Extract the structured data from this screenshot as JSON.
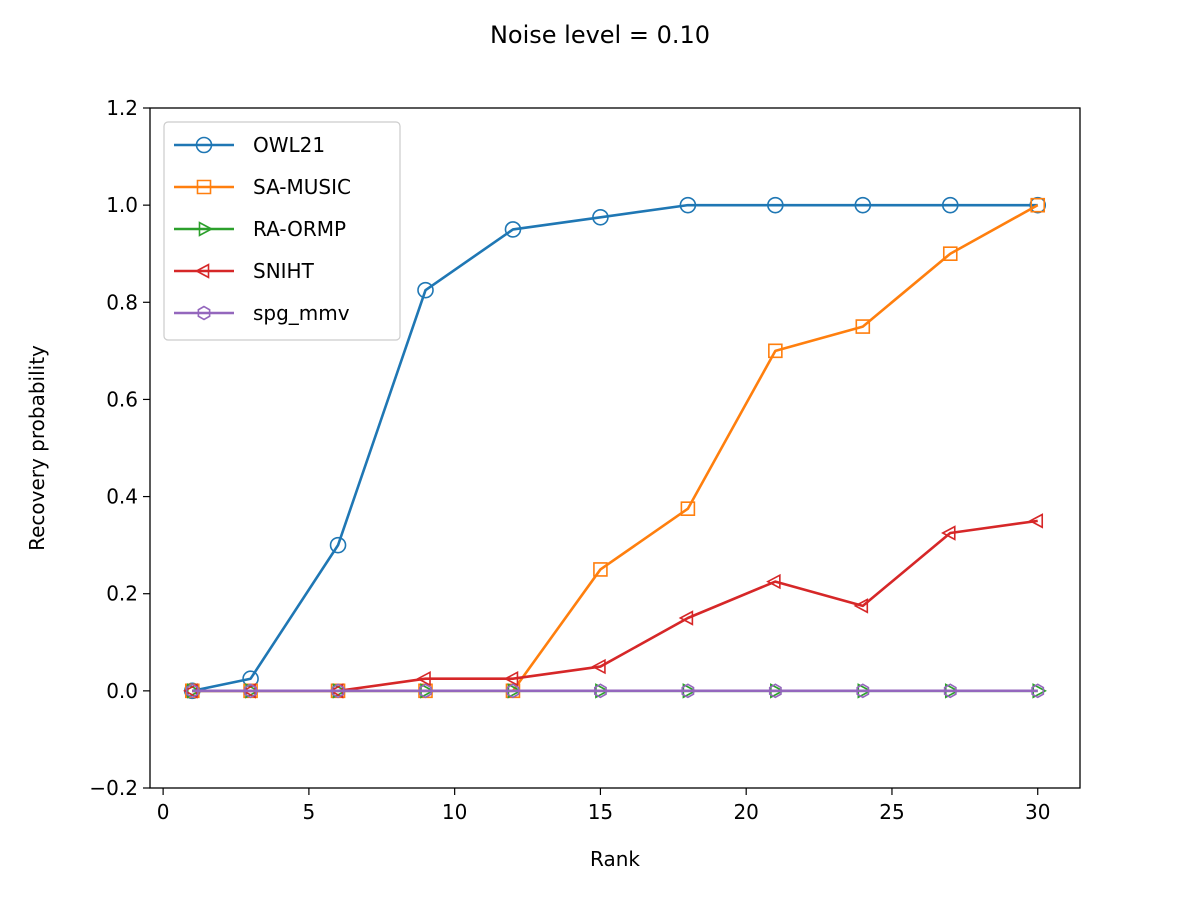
{
  "chart_data": {
    "type": "line",
    "title": "Noise level = 0.10",
    "xlabel": "Rank",
    "ylabel": "Recovery probability",
    "xlim": [
      -0.45,
      31.45
    ],
    "ylim": [
      -0.2,
      1.2
    ],
    "xticks": [
      0,
      5,
      10,
      15,
      20,
      25,
      30
    ],
    "xtick_labels": [
      "0",
      "5",
      "10",
      "15",
      "20",
      "25",
      "30"
    ],
    "yticks": [
      -0.2,
      0.0,
      0.2,
      0.4,
      0.6,
      0.8,
      1.0,
      1.2
    ],
    "ytick_labels": [
      "−0.2",
      "0.0",
      "0.2",
      "0.4",
      "0.6",
      "0.8",
      "1.0",
      "1.2"
    ],
    "grid": false,
    "legend_position": "top-left",
    "x": [
      1,
      3,
      6,
      9,
      12,
      15,
      18,
      21,
      24,
      27,
      30
    ],
    "series": [
      {
        "name": "OWL21",
        "color": "#1f77b4",
        "marker": "circle",
        "values": [
          0.0,
          0.025,
          0.3,
          0.825,
          0.95,
          0.975,
          1.0,
          1.0,
          1.0,
          1.0,
          1.0
        ]
      },
      {
        "name": "SA-MUSIC",
        "color": "#ff7f0e",
        "marker": "square",
        "values": [
          0.0,
          0.0,
          0.0,
          0.0,
          0.0,
          0.25,
          0.375,
          0.7,
          0.75,
          0.9,
          1.0
        ]
      },
      {
        "name": "RA-ORMP",
        "color": "#2ca02c",
        "marker": "triangle-right",
        "values": [
          0.0,
          0.0,
          0.0,
          0.0,
          0.0,
          0.0,
          0.0,
          0.0,
          0.0,
          0.0,
          0.0
        ]
      },
      {
        "name": "SNIHT",
        "color": "#d62728",
        "marker": "triangle-left",
        "values": [
          0.0,
          0.0,
          0.0,
          0.025,
          0.025,
          0.05,
          0.15,
          0.225,
          0.175,
          0.325,
          0.35
        ]
      },
      {
        "name": "spg_mmv",
        "color": "#9467bd",
        "marker": "hexagon",
        "values": [
          0.0,
          0.0,
          0.0,
          0.0,
          0.0,
          0.0,
          0.0,
          0.0,
          0.0,
          0.0,
          0.0
        ]
      }
    ]
  }
}
